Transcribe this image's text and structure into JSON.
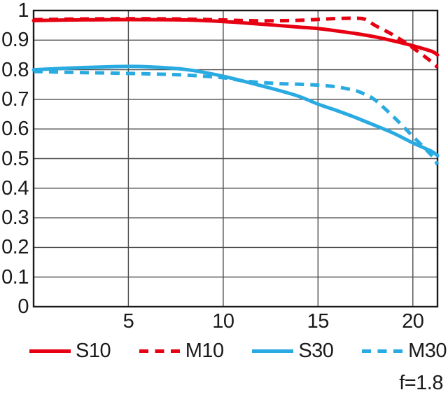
{
  "chart_data": {
    "type": "line",
    "title": "",
    "xlabel": "",
    "ylabel": "",
    "xlim": [
      0,
      21.3
    ],
    "ylim": [
      0,
      1
    ],
    "grid": true,
    "legend_position": "bottom",
    "aperture_label": "f=1.8",
    "x_ticks": [
      {
        "value": 5,
        "label": "5"
      },
      {
        "value": 10,
        "label": "10"
      },
      {
        "value": 15,
        "label": "15"
      },
      {
        "value": 20,
        "label": "20"
      }
    ],
    "y_ticks": [
      {
        "value": 1,
        "label": "1"
      },
      {
        "value": 0.9,
        "label": "0.9"
      },
      {
        "value": 0.8,
        "label": "0.8"
      },
      {
        "value": 0.7,
        "label": "0.7"
      },
      {
        "value": 0.6,
        "label": "0.6"
      },
      {
        "value": 0.5,
        "label": "0.5"
      },
      {
        "value": 0.4,
        "label": "0.4"
      },
      {
        "value": 0.3,
        "label": "0.3"
      },
      {
        "value": 0.2,
        "label": "0.2"
      },
      {
        "value": 0.1,
        "label": "0.1"
      },
      {
        "value": 0,
        "label": "0"
      }
    ],
    "series": [
      {
        "name": "S10",
        "color": "#e60012",
        "style": "solid",
        "points": [
          [
            0,
            0.966
          ],
          [
            2,
            0.968
          ],
          [
            4,
            0.969
          ],
          [
            6,
            0.969
          ],
          [
            8,
            0.968
          ],
          [
            10,
            0.963
          ],
          [
            12,
            0.954
          ],
          [
            14,
            0.944
          ],
          [
            15,
            0.939
          ],
          [
            16,
            0.931
          ],
          [
            17,
            0.922
          ],
          [
            18,
            0.911
          ],
          [
            19,
            0.897
          ],
          [
            20,
            0.881
          ],
          [
            21,
            0.862
          ],
          [
            21.3,
            0.85
          ]
        ]
      },
      {
        "name": "M10",
        "color": "#e60012",
        "style": "dashed",
        "points": [
          [
            0,
            0.969
          ],
          [
            2,
            0.971
          ],
          [
            4,
            0.972
          ],
          [
            6,
            0.972
          ],
          [
            8,
            0.971
          ],
          [
            10,
            0.968
          ],
          [
            12,
            0.965
          ],
          [
            14,
            0.967
          ],
          [
            15,
            0.97
          ],
          [
            16,
            0.973
          ],
          [
            17,
            0.974
          ],
          [
            17.5,
            0.97
          ],
          [
            18,
            0.95
          ],
          [
            19,
            0.916
          ],
          [
            20,
            0.874
          ],
          [
            21,
            0.826
          ],
          [
            21.3,
            0.808
          ]
        ]
      },
      {
        "name": "S30",
        "color": "#29abe2",
        "style": "solid",
        "points": [
          [
            0,
            0.8
          ],
          [
            2,
            0.806
          ],
          [
            4,
            0.81
          ],
          [
            5,
            0.811
          ],
          [
            6,
            0.81
          ],
          [
            8,
            0.801
          ],
          [
            10,
            0.778
          ],
          [
            12,
            0.746
          ],
          [
            13,
            0.729
          ],
          [
            14,
            0.71
          ],
          [
            15,
            0.684
          ],
          [
            16,
            0.662
          ],
          [
            17,
            0.638
          ],
          [
            18,
            0.612
          ],
          [
            19,
            0.585
          ],
          [
            20,
            0.553
          ],
          [
            21,
            0.524
          ],
          [
            21.3,
            0.51
          ]
        ]
      },
      {
        "name": "M30",
        "color": "#29abe2",
        "style": "dashed",
        "points": [
          [
            0,
            0.794
          ],
          [
            2,
            0.791
          ],
          [
            4,
            0.789
          ],
          [
            6,
            0.786
          ],
          [
            8,
            0.782
          ],
          [
            10,
            0.773
          ],
          [
            11,
            0.763
          ],
          [
            12,
            0.757
          ],
          [
            13,
            0.753
          ],
          [
            14,
            0.751
          ],
          [
            15,
            0.748
          ],
          [
            16,
            0.742
          ],
          [
            17,
            0.729
          ],
          [
            17.5,
            0.716
          ],
          [
            18,
            0.698
          ],
          [
            19,
            0.64
          ],
          [
            20,
            0.575
          ],
          [
            21,
            0.51
          ],
          [
            21.3,
            0.48
          ]
        ]
      }
    ],
    "colors": {
      "grid": "#4d4d4d",
      "border": "#1a1a1a",
      "text": "#1a1a1a"
    }
  }
}
